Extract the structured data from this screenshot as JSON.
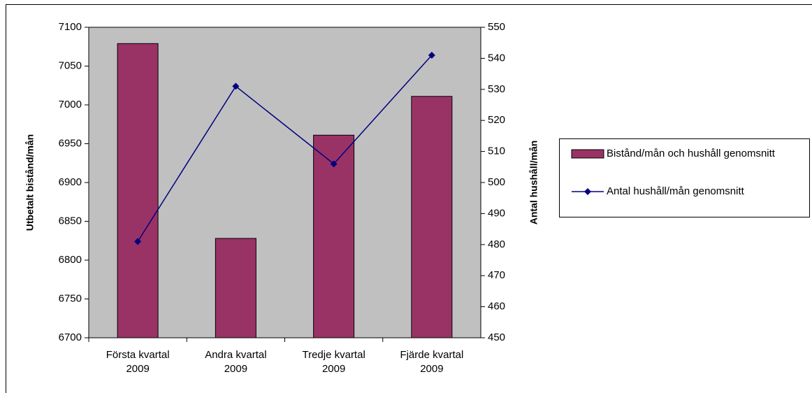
{
  "chart_data": {
    "type": "bar+line",
    "categories": [
      "Första kvartal 2009",
      "Andra kvartal 2009",
      "Tredje kvartal 2009",
      "Fjärde kvartal 2009"
    ],
    "series": [
      {
        "name": "Bistånd/mån och hushåll genomsnitt",
        "type": "bar",
        "color": "#993366",
        "values": [
          7079,
          6828,
          6961,
          7011
        ]
      },
      {
        "name": "Antal hushåll/mån genomsnitt",
        "type": "line",
        "axis": "y2",
        "color": "#000080",
        "values": [
          481,
          531,
          506,
          541
        ]
      }
    ],
    "ylabel": "Utbetalt bistånd/mån",
    "y2label": "Antal hushåll/mån",
    "ylim": [
      6700,
      7100
    ],
    "yticks": [
      6700,
      6750,
      6800,
      6850,
      6900,
      6950,
      7000,
      7050,
      7100
    ],
    "y2lim": [
      450,
      550
    ],
    "y2ticks": [
      450,
      460,
      470,
      480,
      490,
      500,
      510,
      520,
      530,
      540,
      550
    ],
    "grid": false,
    "legend": "right",
    "plot_background": "#c0c0c0"
  }
}
